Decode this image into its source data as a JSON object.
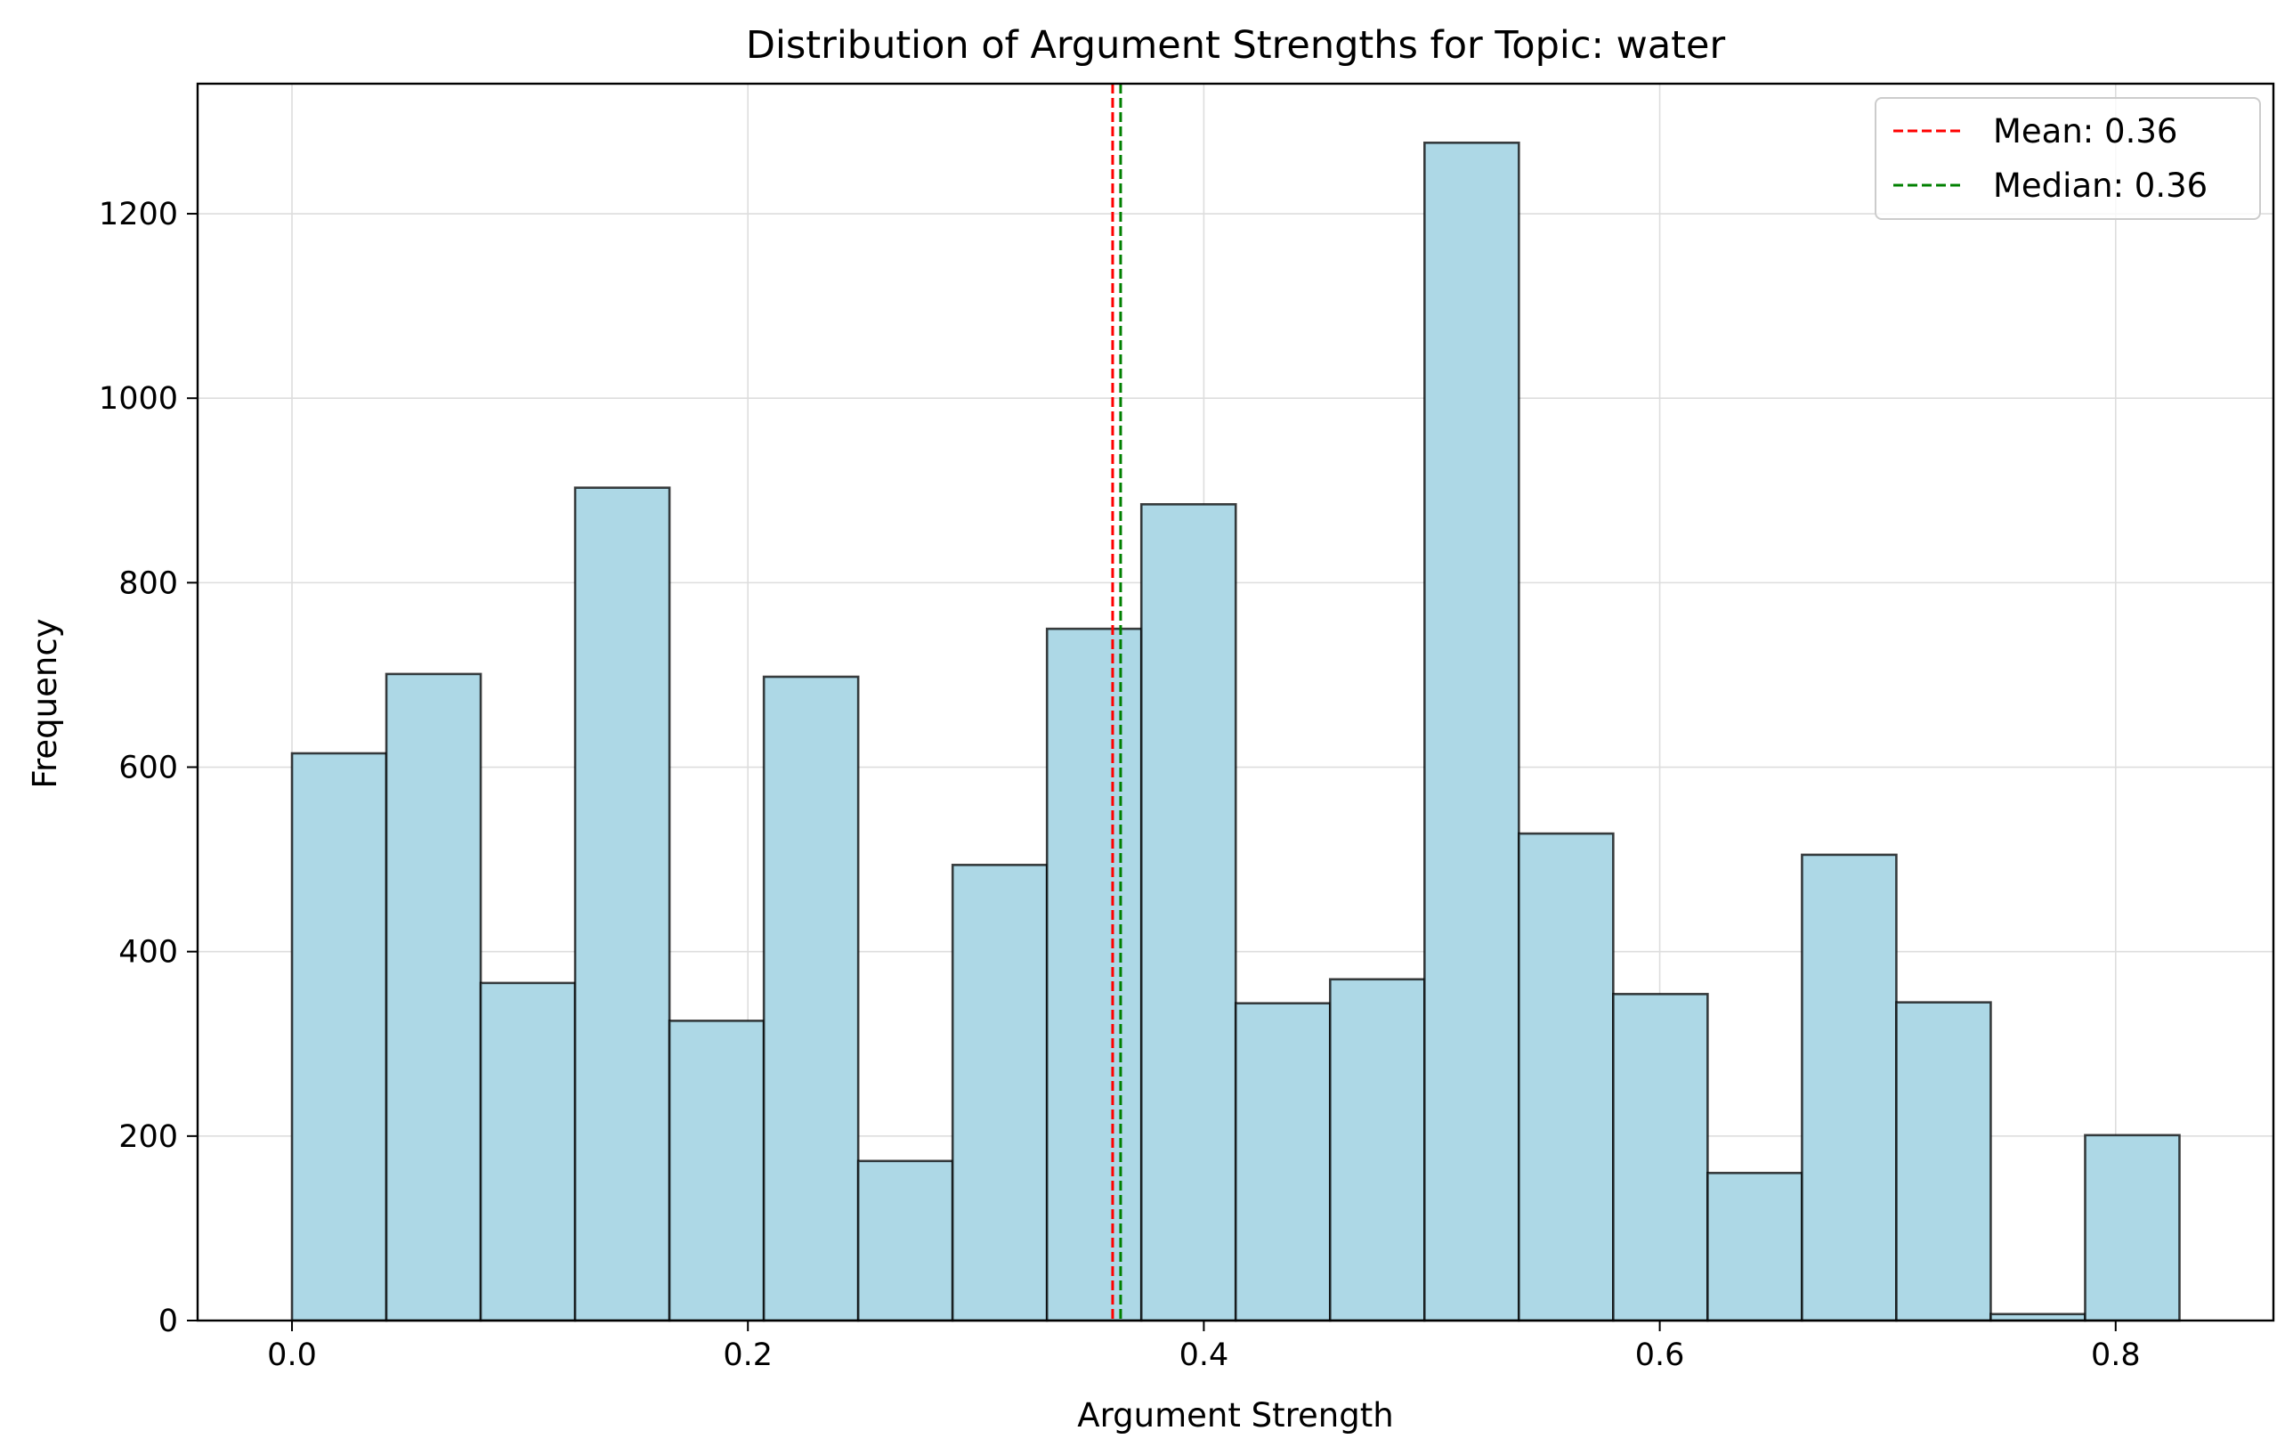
{
  "chart_data": {
    "type": "bar",
    "subtype": "histogram",
    "title": "Distribution of Argument Strengths for Topic: water",
    "xlabel": "Argument Strength",
    "ylabel": "Frequency",
    "xlim": [
      -0.0414,
      0.8692
    ],
    "ylim": [
      0,
      1341
    ],
    "bin_edges": [
      0.0,
      0.0414,
      0.0828,
      0.1242,
      0.1656,
      0.207,
      0.2484,
      0.2898,
      0.3312,
      0.3726,
      0.414,
      0.4554,
      0.4968,
      0.5382,
      0.5796,
      0.621,
      0.6624,
      0.7038,
      0.7452,
      0.7866,
      0.828
    ],
    "values": [
      615,
      701,
      366,
      903,
      325,
      698,
      173,
      494,
      750,
      885,
      344,
      370,
      1277,
      528,
      354,
      160,
      505,
      345,
      7,
      201
    ],
    "bar_color": "#ADD8E6",
    "edge_color": "#000000",
    "x_ticks": [
      0.0,
      0.2,
      0.4,
      0.6,
      0.8
    ],
    "x_tick_labels": [
      "0.0",
      "0.2",
      "0.4",
      "0.6",
      "0.8"
    ],
    "y_ticks": [
      0,
      200,
      400,
      600,
      800,
      1000,
      1200
    ],
    "y_tick_labels": [
      "0",
      "200",
      "400",
      "600",
      "800",
      "1000",
      "1200"
    ],
    "grid": true,
    "reference_lines": [
      {
        "label": "Mean: 0.36",
        "x": 0.36,
        "color": "#ff0000",
        "style": "dashed"
      },
      {
        "label": "Median: 0.36",
        "x": 0.3635,
        "color": "#008000",
        "style": "dashed"
      }
    ],
    "legend_position": "top-right"
  }
}
